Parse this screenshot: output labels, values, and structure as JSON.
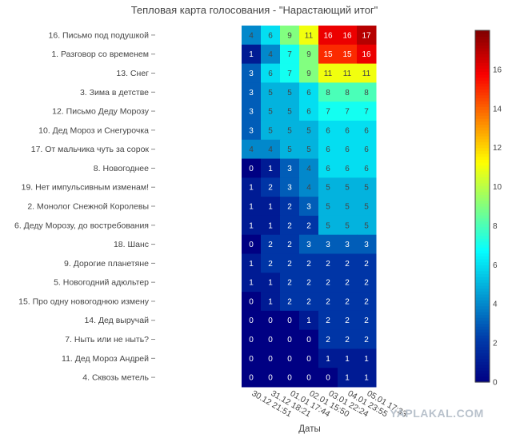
{
  "chart_data": {
    "type": "heatmap",
    "title": "Тепловая карта голосования - \"Нарастающий итог\"",
    "xlabel": "Даты",
    "ylabel": "",
    "x": [
      "30.12 21:51",
      "31.12 18:21",
      "01.01 17:44",
      "02.01 15:50",
      "03.01 22:24",
      "04.01 23:55",
      "05.01 17:33"
    ],
    "y": [
      "16. Письмо под подушкой",
      "1. Разговор со временем",
      "13. Снег",
      "3. Зима в детстве",
      "12. Письмо Деду Морозу",
      "10. Дед Мороз и Снегурочка",
      "17. От мальчика чуть за сорок",
      "8. Новогоднее",
      "19. Нет импульсивным изменам!",
      "2. Монолог Снежной Королевы",
      "6. Деду Морозу, до востребования",
      "18. Шанс",
      "9. Дорогие планетяне",
      "5. Новогодний адюльтер",
      "15. Про одну новогоднюю измену",
      "14. Дед выручай",
      "7. Ныть или не ныть?",
      "11. Дед Мороз Андрей",
      "4. Сквозь метель"
    ],
    "z": [
      [
        4,
        6,
        9,
        11,
        16,
        16,
        17
      ],
      [
        1,
        4,
        7,
        9,
        15,
        15,
        16
      ],
      [
        3,
        6,
        7,
        9,
        11,
        11,
        11
      ],
      [
        3,
        5,
        5,
        6,
        8,
        8,
        8
      ],
      [
        3,
        5,
        5,
        6,
        7,
        7,
        7
      ],
      [
        3,
        5,
        5,
        5,
        6,
        6,
        6
      ],
      [
        4,
        4,
        5,
        5,
        6,
        6,
        6
      ],
      [
        0,
        1,
        3,
        4,
        6,
        6,
        6
      ],
      [
        1,
        2,
        3,
        4,
        5,
        5,
        5
      ],
      [
        1,
        1,
        2,
        3,
        5,
        5,
        5
      ],
      [
        1,
        1,
        2,
        2,
        5,
        5,
        5
      ],
      [
        0,
        2,
        2,
        3,
        3,
        3,
        3
      ],
      [
        1,
        2,
        2,
        2,
        2,
        2,
        2
      ],
      [
        1,
        1,
        2,
        2,
        2,
        2,
        2
      ],
      [
        0,
        1,
        2,
        2,
        2,
        2,
        2
      ],
      [
        0,
        0,
        0,
        1,
        2,
        2,
        2
      ],
      [
        0,
        0,
        0,
        0,
        2,
        2,
        2
      ],
      [
        0,
        0,
        0,
        0,
        1,
        1,
        1
      ],
      [
        0,
        0,
        0,
        0,
        0,
        1,
        1
      ]
    ],
    "zlim": [
      0,
      18
    ],
    "colorscale": "jet",
    "colorbar_ticks": [
      0,
      2,
      4,
      6,
      8,
      10,
      12,
      14,
      16
    ],
    "colorbar_position": "right"
  },
  "watermark": "YAPLAKAL.COM"
}
